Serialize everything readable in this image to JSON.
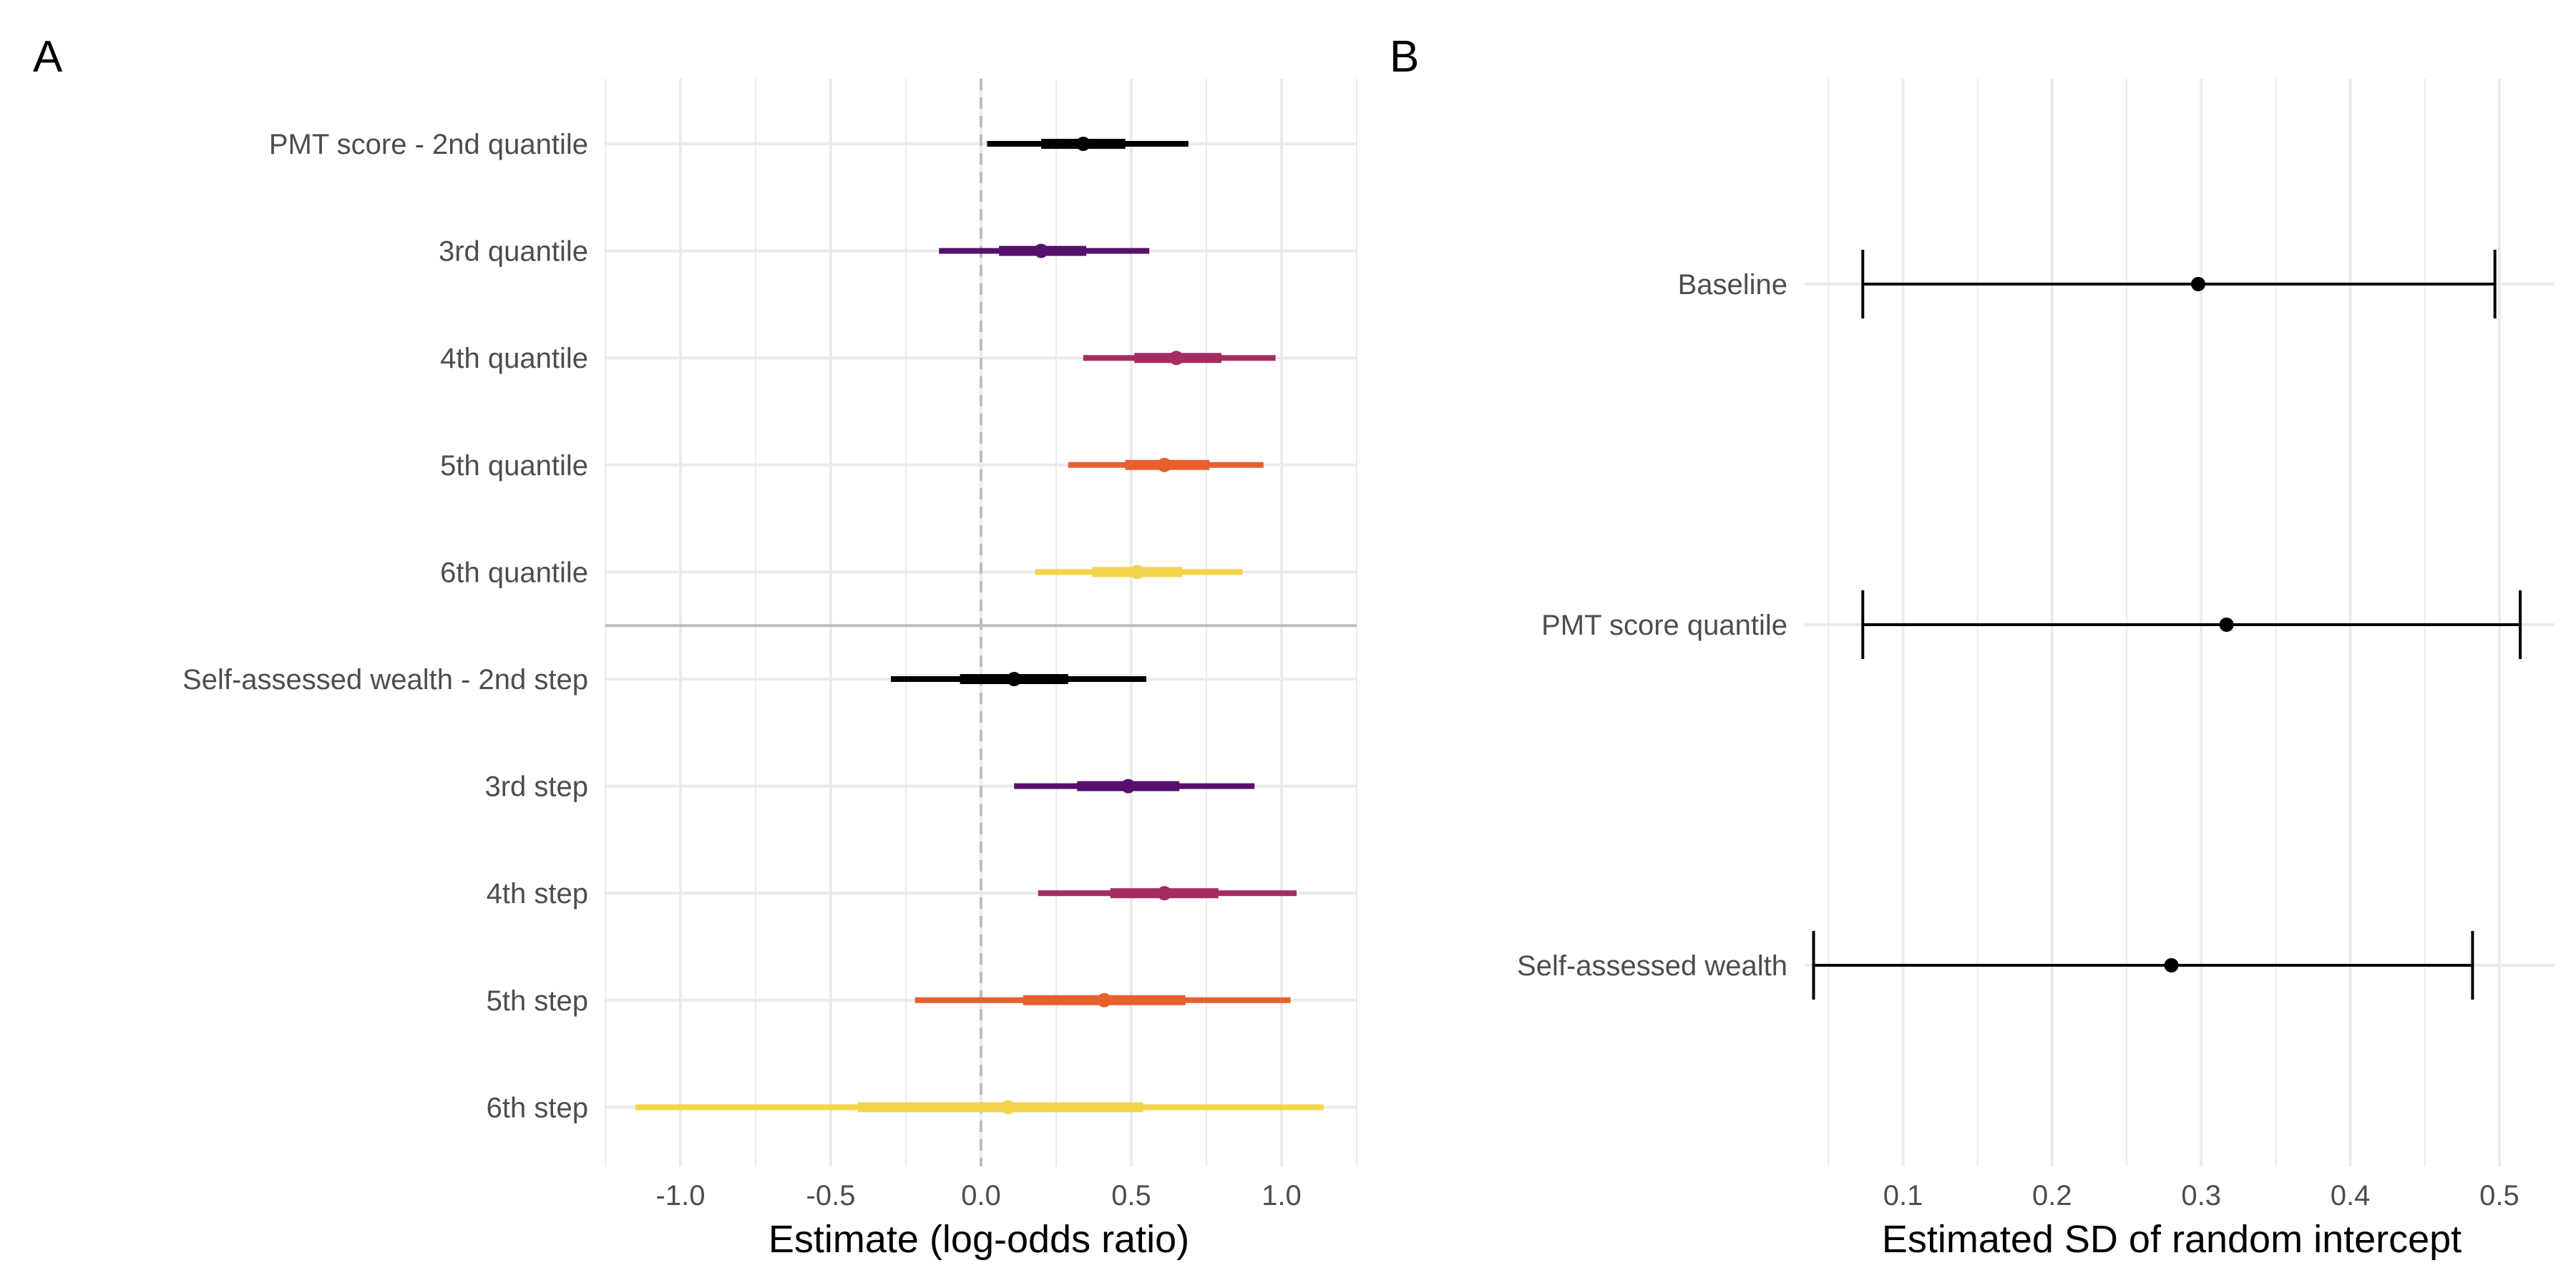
{
  "chart_data": [
    {
      "type": "forest",
      "panel_label": "A",
      "xlabel": "Estimate (log-odds ratio)",
      "xlim": [
        -1.25,
        1.25
      ],
      "xticks": [
        -1.0,
        -0.5,
        0.0,
        0.5,
        1.0
      ],
      "xtick_labels": [
        "-1.0",
        "-0.5",
        "0.0",
        "0.5",
        "1.0"
      ],
      "reference_line_x": 0,
      "grid": true,
      "groups": [
        {
          "rows": [
            {
              "label": "PMT score - 2nd quantile",
              "estimate": 0.34,
              "ci_outer": [
                0.02,
                0.69
              ],
              "ci_inner": [
                0.2,
                0.48
              ],
              "color": "#000000"
            },
            {
              "label": "3rd quantile",
              "estimate": 0.2,
              "ci_outer": [
                -0.14,
                0.56
              ],
              "ci_inner": [
                0.06,
                0.35
              ],
              "color": "#57106e"
            },
            {
              "label": "4th quantile",
              "estimate": 0.65,
              "ci_outer": [
                0.34,
                0.98
              ],
              "ci_inner": [
                0.51,
                0.8
              ],
              "color": "#a52c60"
            },
            {
              "label": "5th quantile",
              "estimate": 0.61,
              "ci_outer": [
                0.29,
                0.94
              ],
              "ci_inner": [
                0.48,
                0.76
              ],
              "color": "#e8602b"
            },
            {
              "label": "6th quantile",
              "estimate": 0.52,
              "ci_outer": [
                0.18,
                0.87
              ],
              "ci_inner": [
                0.37,
                0.67
              ],
              "color": "#f3d44b"
            }
          ]
        },
        {
          "rows": [
            {
              "label": "Self-assessed wealth - 2nd step",
              "estimate": 0.11,
              "ci_outer": [
                -0.3,
                0.55
              ],
              "ci_inner": [
                -0.07,
                0.29
              ],
              "color": "#000000"
            },
            {
              "label": "3rd step",
              "estimate": 0.49,
              "ci_outer": [
                0.11,
                0.91
              ],
              "ci_inner": [
                0.32,
                0.66
              ],
              "color": "#57106e"
            },
            {
              "label": "4th step",
              "estimate": 0.61,
              "ci_outer": [
                0.19,
                1.05
              ],
              "ci_inner": [
                0.43,
                0.79
              ],
              "color": "#a52c60"
            },
            {
              "label": "5th step",
              "estimate": 0.41,
              "ci_outer": [
                -0.22,
                1.03
              ],
              "ci_inner": [
                0.14,
                0.68
              ],
              "color": "#e8602b"
            },
            {
              "label": "6th step",
              "estimate": 0.09,
              "ci_outer": [
                -1.15,
                1.14
              ],
              "ci_inner": [
                -0.41,
                0.54
              ],
              "color": "#f3d44b"
            }
          ]
        }
      ]
    },
    {
      "type": "errorbar",
      "panel_label": "B",
      "xlabel": "Estimated SD of random intercept",
      "xlim": [
        0.034,
        0.537
      ],
      "xticks": [
        0.1,
        0.2,
        0.3,
        0.4,
        0.5
      ],
      "xtick_labels": [
        "0.1",
        "0.2",
        "0.3",
        "0.4",
        "0.5"
      ],
      "grid": true,
      "rows": [
        {
          "label": "Baseline",
          "estimate": 0.298,
          "ci": [
            0.073,
            0.497
          ]
        },
        {
          "label": "PMT score quantile",
          "estimate": 0.317,
          "ci": [
            0.073,
            0.514
          ]
        },
        {
          "label": "Self-assessed wealth",
          "estimate": 0.28,
          "ci": [
            0.04,
            0.482
          ]
        }
      ],
      "color": "#000000"
    }
  ]
}
